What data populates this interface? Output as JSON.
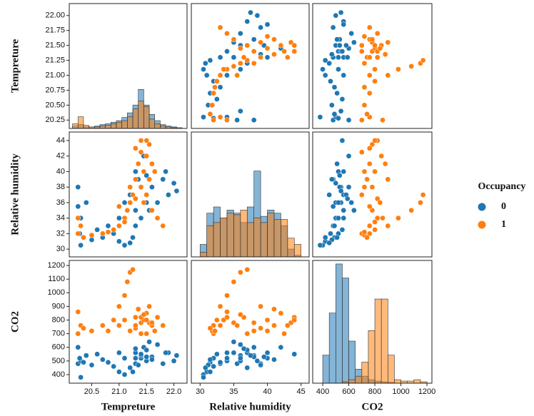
{
  "chart_data": {
    "type": "pairplot",
    "legend_title": "Occupancy",
    "variables": [
      {
        "label": "Tempreture",
        "xlim": [
          20.09,
          22.24
        ],
        "ylim": [
          20.11,
          22.2
        ],
        "hist_ylim": [
          0,
          160
        ],
        "xticks": [
          20.5,
          {
            "value": 21,
            "label": "21.0"
          },
          21.5,
          {
            "value": 22,
            "label": "22.0"
          }
        ],
        "yticks": [
          20.25,
          {
            "value": 20.5,
            "label": "20.50"
          },
          20.75,
          {
            "value": 21,
            "label": "21.00"
          },
          21.25,
          {
            "value": 21.5,
            "label": "21.50"
          },
          21.75,
          {
            "value": 22,
            "label": "22.00"
          }
        ]
      },
      {
        "label": "Relative humidity",
        "xlim": [
          28.7,
          46.2
        ],
        "ylim": [
          29.0,
          45.1
        ],
        "hist_ylim": [
          0,
          80
        ],
        "xticks": [
          30,
          35,
          40,
          45
        ],
        "yticks": [
          30,
          32,
          34,
          36,
          38,
          40,
          42,
          44
        ]
      },
      {
        "label": "CO2",
        "xlim": [
          323,
          1238
        ],
        "ylim": [
          337,
          1237
        ],
        "hist_ylim": [
          0,
          175
        ],
        "xticks": [
          400,
          600,
          800,
          1000,
          1200
        ],
        "yticks": [
          400,
          500,
          600,
          700,
          800,
          900,
          1000,
          1100,
          1200
        ]
      }
    ],
    "series": [
      {
        "name": "0",
        "color": "#1f77b4",
        "points": [
          [
            20.25,
            35.5,
            480
          ],
          [
            20.3,
            34,
            500
          ],
          [
            20.28,
            32,
            520
          ],
          [
            20.35,
            31.5,
            490
          ],
          [
            20.5,
            31.2,
            470
          ],
          [
            20.7,
            31.5,
            510
          ],
          [
            20.9,
            32,
            460
          ],
          [
            21.0,
            31,
            420
          ],
          [
            21.1,
            30.5,
            400
          ],
          [
            21.2,
            30.8,
            450
          ],
          [
            20.4,
            36,
            540
          ],
          [
            20.25,
            38,
            600
          ],
          [
            21.3,
            33,
            480
          ],
          [
            21.4,
            34,
            520
          ],
          [
            21.3,
            35,
            560
          ],
          [
            21.5,
            36,
            500
          ],
          [
            21.4,
            38,
            540
          ],
          [
            21.3,
            40,
            520
          ],
          [
            21.45,
            42,
            600
          ],
          [
            21.4,
            44,
            550
          ],
          [
            21.6,
            38,
            530
          ],
          [
            21.8,
            39,
            480
          ],
          [
            22.0,
            38.5,
            500
          ],
          [
            21.9,
            37,
            560
          ],
          [
            21.7,
            36,
            620
          ],
          [
            21.5,
            37,
            580
          ],
          [
            21.6,
            41,
            510
          ],
          [
            21.35,
            39,
            470
          ],
          [
            21.2,
            37,
            450
          ],
          [
            21.1,
            36,
            520
          ],
          [
            21.0,
            34,
            560
          ],
          [
            20.8,
            33,
            490
          ],
          [
            21.55,
            35,
            640
          ],
          [
            21.25,
            31.5,
            420
          ],
          [
            21.85,
            40,
            560
          ],
          [
            22.05,
            37.5,
            540
          ],
          [
            21.3,
            36.5,
            590
          ],
          [
            21.5,
            39.5,
            530
          ],
          [
            20.3,
            30.5,
            380
          ],
          [
            20.6,
            32.5,
            550
          ]
        ],
        "hist": [
          {
            "bins": [
              20.15,
              20.25,
              20.35,
              20.45,
              20.55,
              20.65,
              20.75,
              20.85,
              20.95,
              21.05,
              21.15,
              21.25,
              21.35,
              21.45,
              21.55,
              21.65,
              21.75,
              21.85,
              21.95,
              22.05,
              22.15
            ],
            "counts": [
              3,
              5,
              2,
              2,
              3,
              5,
              6,
              8,
              10,
              14,
              20,
              30,
              50,
              30,
              18,
              10,
              5,
              3,
              2,
              1
            ]
          },
          {
            "bins": [
              30,
              31,
              32,
              33,
              34,
              35,
              36,
              37,
              38,
              39,
              40,
              41,
              42,
              43,
              44,
              45
            ],
            "counts": [
              8,
              28,
              32,
              25,
              30,
              28,
              22,
              32,
              55,
              26,
              30,
              28,
              20,
              5,
              1
            ]
          },
          {
            "bins": [
              400,
              450,
              500,
              550,
              600,
              650,
              700,
              750,
              800,
              850,
              900,
              950,
              1000,
              1050,
              1100,
              1150,
              1200
            ],
            "counts": [
              40,
              100,
              170,
              150,
              60,
              20,
              10,
              5,
              3,
              2,
              1,
              0,
              0,
              0,
              0,
              0
            ]
          }
        ]
      },
      {
        "name": "1",
        "color": "#ff7f0e",
        "points": [
          [
            20.25,
            34,
            860
          ],
          [
            20.3,
            33,
            760
          ],
          [
            20.25,
            32,
            700
          ],
          [
            20.5,
            31.8,
            720
          ],
          [
            20.7,
            32,
            760
          ],
          [
            20.9,
            32.5,
            800
          ],
          [
            21.0,
            33,
            900
          ],
          [
            21.1,
            34,
            980
          ],
          [
            21.15,
            35,
            1080
          ],
          [
            21.2,
            36,
            1150
          ],
          [
            21.25,
            37,
            1170
          ],
          [
            21.3,
            36.5,
            820
          ],
          [
            21.4,
            38,
            780
          ],
          [
            21.45,
            40,
            800
          ],
          [
            21.5,
            42,
            850
          ],
          [
            21.55,
            43.5,
            780
          ],
          [
            21.6,
            41,
            760
          ],
          [
            21.4,
            44,
            820
          ],
          [
            21.3,
            39,
            740
          ],
          [
            21.5,
            37,
            700
          ],
          [
            21.6,
            35,
            780
          ],
          [
            21.7,
            34,
            820
          ],
          [
            21.8,
            33,
            760
          ],
          [
            21.35,
            41,
            880
          ],
          [
            21.2,
            38,
            720
          ],
          [
            21.55,
            39,
            900
          ],
          [
            21.4,
            42.5,
            700
          ],
          [
            21.0,
            35.5,
            760
          ],
          [
            21.45,
            36,
            840
          ],
          [
            21.65,
            40,
            720
          ],
          [
            20.8,
            32.2,
            720
          ],
          [
            21.3,
            43,
            760
          ],
          [
            20.35,
            31.5,
            740
          ],
          [
            21.1,
            33.5,
            800
          ],
          [
            21.5,
            44,
            800
          ]
        ],
        "hist": [
          {
            "bins": [
              20.15,
              20.25,
              20.35,
              20.45,
              20.55,
              20.65,
              20.75,
              20.85,
              20.95,
              21.05,
              21.15,
              21.25,
              21.35,
              21.45,
              21.55,
              21.65,
              21.75,
              21.85,
              21.95,
              22.05,
              22.15
            ],
            "counts": [
              6,
              15,
              4,
              2,
              2,
              3,
              4,
              6,
              8,
              10,
              15,
              25,
              35,
              28,
              12,
              6,
              3,
              2,
              1,
              0
            ]
          },
          {
            "bins": [
              30,
              31,
              32,
              33,
              34,
              35,
              36,
              37,
              38,
              39,
              40,
              41,
              42,
              43,
              44,
              45
            ],
            "counts": [
              3,
              20,
              22,
              25,
              28,
              27,
              30,
              22,
              25,
              22,
              28,
              24,
              24,
              12,
              8
            ]
          },
          {
            "bins": [
              400,
              450,
              500,
              550,
              600,
              650,
              700,
              750,
              800,
              850,
              900,
              950,
              1000,
              1050,
              1100,
              1150,
              1200
            ],
            "counts": [
              0,
              0,
              0,
              2,
              5,
              10,
              30,
              75,
              120,
              120,
              40,
              5,
              3,
              3,
              5,
              2
            ]
          }
        ]
      }
    ]
  }
}
